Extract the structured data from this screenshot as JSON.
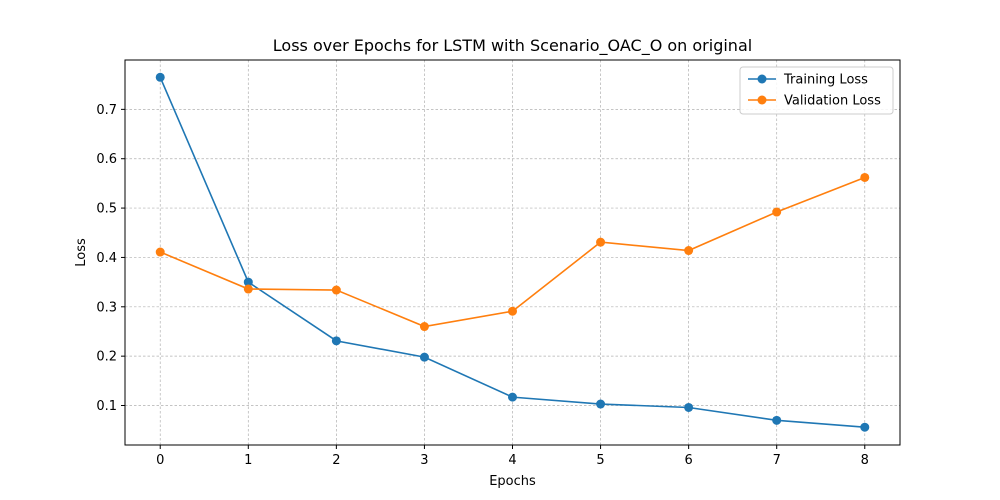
{
  "chart_data": {
    "type": "line",
    "title": "Loss over Epochs for LSTM with Scenario_OAC_O on original",
    "xlabel": "Epochs",
    "ylabel": "Loss",
    "x": [
      0,
      1,
      2,
      3,
      4,
      5,
      6,
      7,
      8
    ],
    "xlim": [
      -0.4,
      8.4
    ],
    "ylim": [
      0.02,
      0.8
    ],
    "xticks": [
      "0",
      "1",
      "2",
      "3",
      "4",
      "5",
      "6",
      "7",
      "8"
    ],
    "yticks": [
      0.1,
      0.2,
      0.3,
      0.4,
      0.5,
      0.6,
      0.7
    ],
    "ytick_labels": [
      "0.1",
      "0.2",
      "0.3",
      "0.4",
      "0.5",
      "0.6",
      "0.7"
    ],
    "grid": true,
    "legend_position": "top-right",
    "series": [
      {
        "name": "Training Loss",
        "color": "#1f77b4",
        "values": [
          0.765,
          0.35,
          0.231,
          0.198,
          0.117,
          0.103,
          0.096,
          0.07,
          0.056
        ]
      },
      {
        "name": "Validation Loss",
        "color": "#ff7f0e",
        "values": [
          0.411,
          0.336,
          0.334,
          0.26,
          0.291,
          0.431,
          0.414,
          0.492,
          0.562
        ]
      }
    ]
  }
}
